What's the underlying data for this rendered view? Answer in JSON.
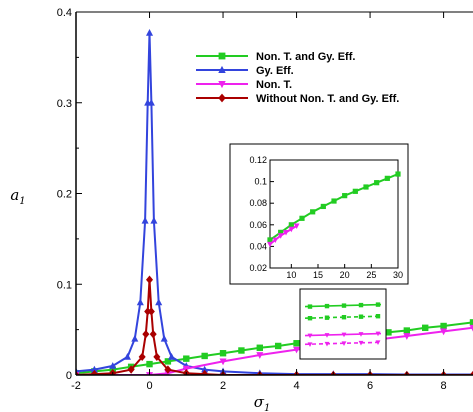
{
  "chart_data": {
    "type": "line",
    "title": "",
    "xlabel": "σ",
    "xlabel_sub": "1",
    "ylabel": "a",
    "ylabel_sub": "1",
    "xlim": [
      -2,
      8.8
    ],
    "ylim": [
      0,
      0.4
    ],
    "xticks": [
      -2,
      0,
      2,
      4,
      6,
      8
    ],
    "yticks": [
      0,
      0.1,
      0.2,
      0.3,
      0.4
    ],
    "xtick_labels": [
      "-2",
      "0",
      "2",
      "4",
      "6",
      "8"
    ],
    "ytick_labels": [
      "0",
      "0.1",
      "0.2",
      "0.3",
      "0.4"
    ],
    "grid": false,
    "legend_position": "top-right",
    "series": [
      {
        "name": "Non. T. and Gy. Eff.",
        "color": "#22cc22",
        "marker": "square",
        "x": [
          -2,
          -1.5,
          -1,
          -0.5,
          0,
          0.5,
          1,
          1.5,
          2,
          2.5,
          3,
          3.5,
          4,
          4.5,
          5,
          5.5,
          6,
          6.5,
          7,
          7.5,
          8,
          8.8
        ],
        "y": [
          0.002,
          0.004,
          0.006,
          0.009,
          0.012,
          0.015,
          0.018,
          0.021,
          0.024,
          0.027,
          0.03,
          0.032,
          0.035,
          0.037,
          0.04,
          0.042,
          0.044,
          0.047,
          0.049,
          0.052,
          0.054,
          0.058
        ]
      },
      {
        "name": "Gy. Eff.",
        "color": "#3344dd",
        "marker": "triangle-up",
        "x": [
          -2,
          -1.5,
          -1,
          -0.6,
          -0.4,
          -0.25,
          -0.12,
          -0.05,
          0,
          0.05,
          0.12,
          0.25,
          0.4,
          0.6,
          1,
          1.5,
          2,
          3,
          4,
          5,
          6,
          7,
          8,
          8.8
        ],
        "y": [
          0.004,
          0.006,
          0.01,
          0.02,
          0.04,
          0.08,
          0.17,
          0.3,
          0.377,
          0.3,
          0.17,
          0.08,
          0.04,
          0.02,
          0.01,
          0.006,
          0.004,
          0.002,
          0.001,
          0.001,
          0.001,
          0.0005,
          0.0005,
          0.0005
        ]
      },
      {
        "name": "Non. T.",
        "color": "#ee22ee",
        "marker": "triangle-down",
        "x": [
          -2,
          -1,
          0,
          0.5,
          1,
          2,
          3,
          4,
          5,
          6,
          7,
          8,
          8.8
        ],
        "y": [
          0,
          0,
          0,
          0.002,
          0.007,
          0.015,
          0.022,
          0.028,
          0.033,
          0.038,
          0.043,
          0.048,
          0.052
        ]
      },
      {
        "name": "Without Non. T. and Gy. Eff.",
        "color": "#aa0000",
        "marker": "diamond",
        "x": [
          -2,
          -1.5,
          -1,
          -0.5,
          -0.2,
          -0.1,
          -0.05,
          0,
          0.05,
          0.1,
          0.2,
          0.5,
          1,
          1.5,
          2,
          3,
          4,
          5,
          6,
          7,
          8,
          8.8
        ],
        "y": [
          0,
          0.001,
          0.002,
          0.006,
          0.02,
          0.045,
          0.07,
          0.105,
          0.07,
          0.045,
          0.02,
          0.006,
          0.002,
          0.001,
          0,
          0,
          0,
          0,
          0,
          0,
          0,
          0
        ]
      }
    ],
    "insets": [
      {
        "xlim": [
          6,
          30
        ],
        "ylim": [
          0.02,
          0.12
        ],
        "xticks": [
          10,
          15,
          20,
          25,
          30
        ],
        "yticks": [
          0.02,
          0.04,
          0.06,
          0.08,
          0.1,
          0.12
        ],
        "xtick_labels": [
          "10",
          "15",
          "20",
          "25",
          "30"
        ],
        "ytick_labels": [
          "0.02",
          "0.04",
          "0.06",
          "0.08",
          "0.1",
          "0.12"
        ],
        "series": [
          {
            "color": "#22cc22",
            "marker": "square",
            "x": [
              6,
              8,
              10,
              12,
              14,
              16,
              18,
              20,
              22,
              24,
              26,
              28,
              30
            ],
            "y": [
              0.046,
              0.053,
              0.06,
              0.066,
              0.072,
              0.077,
              0.082,
              0.087,
              0.091,
              0.095,
              0.099,
              0.103,
              0.107
            ]
          },
          {
            "color": "#ee22ee",
            "marker": "triangle-down",
            "x": [
              6,
              7,
              8,
              9,
              10,
              11
            ],
            "y": [
              0.042,
              0.046,
              0.05,
              0.053,
              0.056,
              0.059
            ]
          }
        ]
      },
      {
        "type": "zoom",
        "series": [
          {
            "color": "#22cc22",
            "style": "solid",
            "y": 0.8
          },
          {
            "color": "#22cc22",
            "style": "dashed",
            "y": 0.6
          },
          {
            "color": "#ee22ee",
            "style": "solid",
            "y": 0.3
          },
          {
            "color": "#ee22ee",
            "style": "dashed",
            "y": 0.15
          }
        ]
      }
    ]
  }
}
